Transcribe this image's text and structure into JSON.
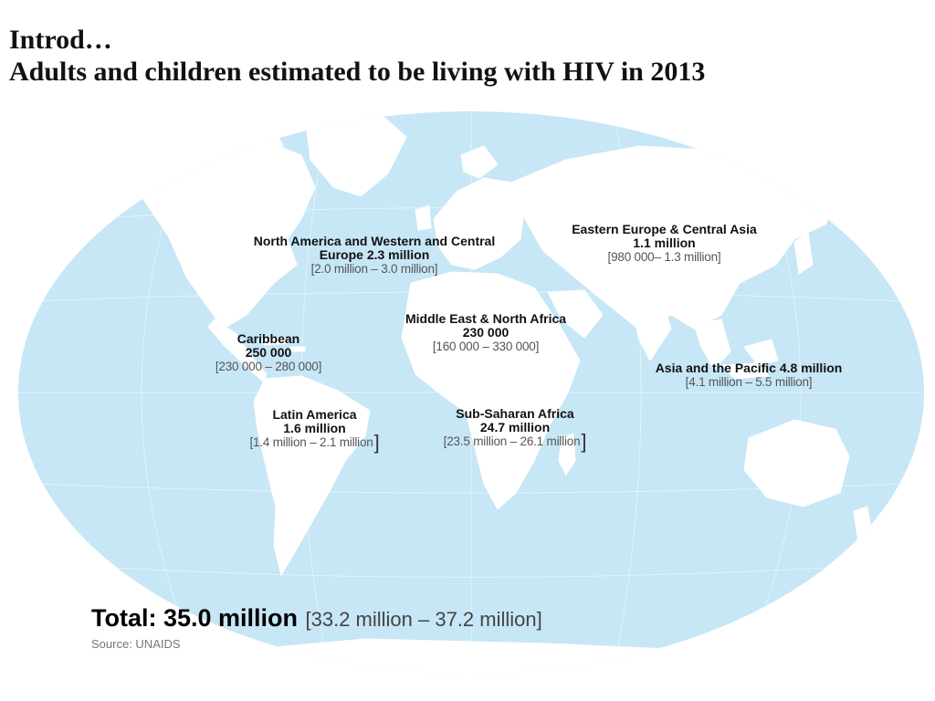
{
  "header": {
    "title": "Introd…",
    "subtitle": "Adults and children estimated to be living with HIV in 2013"
  },
  "colors": {
    "ocean": "#c7e6f6",
    "land": "#ffffff",
    "grid": "#ffffff",
    "text": "#111111",
    "range": "#555555"
  },
  "regions": [
    {
      "key": "na-we",
      "name_lines": [
        "North America and Western and Central",
        "Europe  2.3 million"
      ],
      "range": "[2.0 million – 3.0 million]"
    },
    {
      "key": "eeca",
      "name": "Eastern Europe & Central Asia",
      "value": "1.1 million",
      "range": "[980 000– 1.3 million]"
    },
    {
      "key": "mena",
      "name": "Middle East & North Africa",
      "value": "230 000",
      "range": "[160 000 – 330 000]"
    },
    {
      "key": "caribbean",
      "name": "Caribbean",
      "value": "250 000",
      "range": "[230 000 – 280 000]"
    },
    {
      "key": "ap",
      "name": "Asia and the Pacific 4.8 million",
      "range": "[4.1 million – 5.5 million]"
    },
    {
      "key": "latam",
      "name": "Latin America",
      "value": "1.6 million",
      "range": "[1.4 million – 2.1 million",
      "close": "]"
    },
    {
      "key": "ssa",
      "name": "Sub-Saharan Africa",
      "value": "24.7 million",
      "range": "[23.5 million – 26.1 million",
      "close": "]"
    }
  ],
  "total": {
    "label": "Total: 35.0 million",
    "range": "[33.2 million – 37.2 million]"
  },
  "source": "Source: UNAIDS"
}
